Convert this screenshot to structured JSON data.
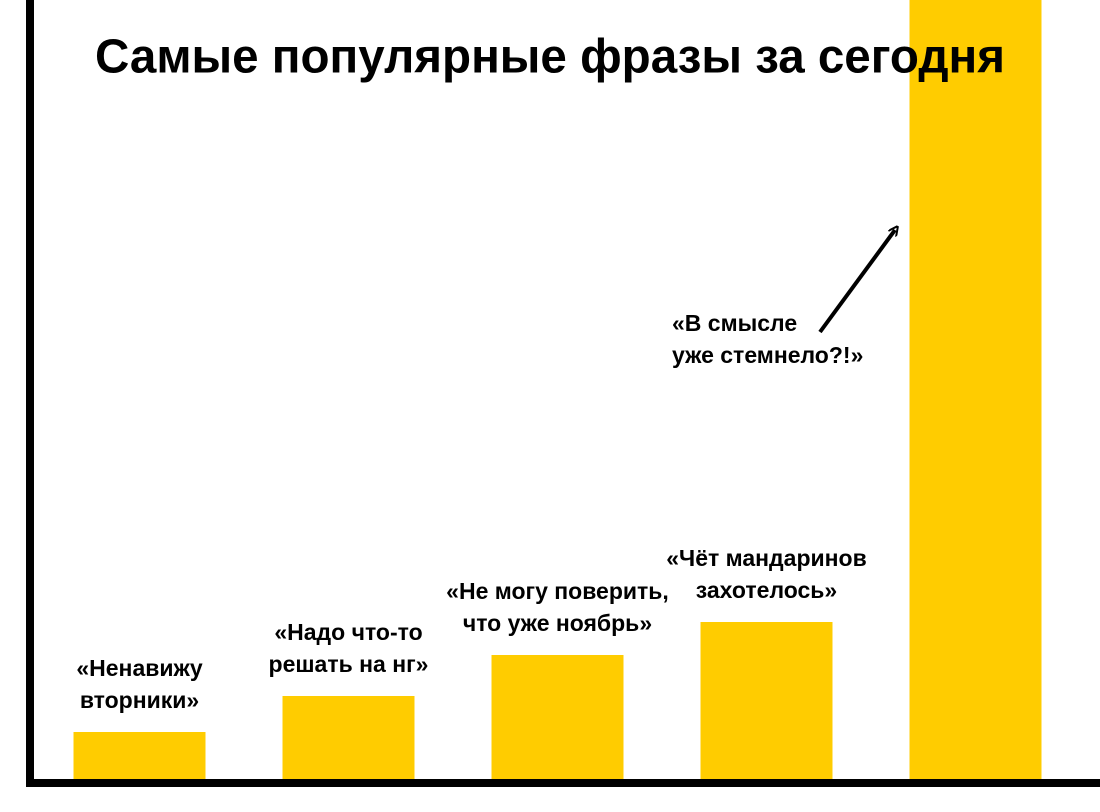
{
  "chart_data": {
    "type": "bar",
    "title": "Самые популярные фразы за сегодня",
    "categories": [
      [
        "«Ненавижу",
        "вторники»"
      ],
      [
        "«Надо что-то",
        "решать на нг»"
      ],
      [
        "«Не могу поверить,",
        "что уже ноябрь»"
      ],
      [
        "«Чёт мандаринов",
        "захотелось»"
      ],
      [
        "«В смысле",
        "уже стемнело?!»"
      ]
    ],
    "values": [
      48,
      84,
      125,
      158,
      780
    ],
    "color": "#ffcc00",
    "ylim": [
      0,
      780
    ]
  }
}
